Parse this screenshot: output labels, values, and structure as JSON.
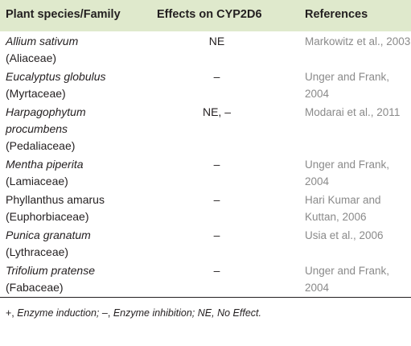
{
  "table": {
    "header": [
      "Plant species/Family",
      "Effects on CYP2D6",
      "References"
    ],
    "rows": [
      {
        "species": "Allium sativum",
        "family": "(Aliaceae)",
        "effect": "NE",
        "reference": "Markowitz et al., 2003"
      },
      {
        "species": "Eucalyptus globulus",
        "family": "(Myrtaceae)",
        "effect": "–",
        "reference": "Unger and Frank, 2004"
      },
      {
        "species": "Harpagophytum procumbens",
        "family": "(Pedaliaceae)",
        "effect": "NE, –",
        "reference": "Modarai et al., 2011"
      },
      {
        "species": "Mentha piperita",
        "family": "(Lamiaceae)",
        "effect": "–",
        "reference": "Unger and Frank, 2004"
      },
      {
        "species": "Phyllanthus amarus",
        "family": "(Euphorbiaceae)",
        "effect": "–",
        "reference": "Hari Kumar and Kuttan, 2006"
      },
      {
        "species": "Punica granatum",
        "family": "(Lythraceae)",
        "effect": "–",
        "reference": "Usia et al., 2006"
      },
      {
        "species": "Trifolium pratense",
        "family": "(Fabaceae)",
        "effect": "–",
        "reference": "Unger and Frank, 2004"
      }
    ],
    "footnote": [
      {
        "symbol": "+,",
        "text": "Enzyme induction;"
      },
      {
        "symbol": "–,",
        "text": "Enzyme inhibition;"
      },
      {
        "symbol": "NE,",
        "text": "No Effect."
      }
    ]
  }
}
